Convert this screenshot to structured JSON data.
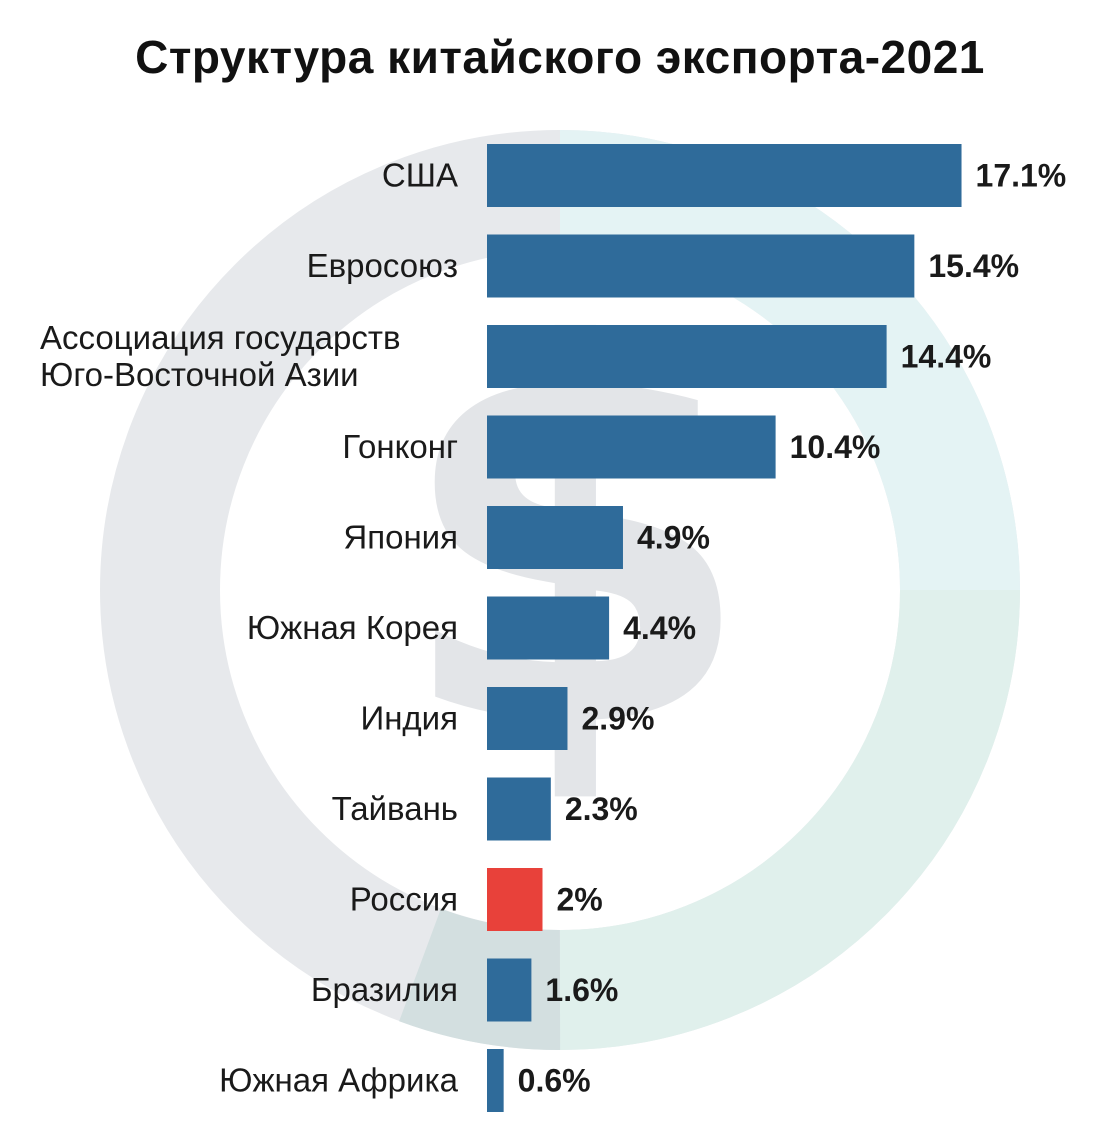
{
  "chart_data": {
    "type": "bar",
    "orientation": "horizontal",
    "title": "Структура китайского экспорта-2021",
    "categories": [
      "США",
      "Евросоюз",
      "Ассоциация государств Юго-Восточной Азии",
      "Гонконг",
      "Япония",
      "Южная Корея",
      "Индия",
      "Тайвань",
      "Россия",
      "Бразилия",
      "Южная Африка"
    ],
    "category_lines": [
      [
        "США"
      ],
      [
        "Евросоюз"
      ],
      [
        "Ассоциация государств",
        "Юго-Восточной Азии"
      ],
      [
        "Гонконг"
      ],
      [
        "Япония"
      ],
      [
        "Южная Корея"
      ],
      [
        "Индия"
      ],
      [
        "Тайвань"
      ],
      [
        "Россия"
      ],
      [
        "Бразилия"
      ],
      [
        "Южная Африка"
      ]
    ],
    "values": [
      17.1,
      15.4,
      14.4,
      10.4,
      4.9,
      4.4,
      2.9,
      2.3,
      2,
      1.6,
      0.6
    ],
    "value_labels": [
      "17.1%",
      "15.4%",
      "14.4%",
      "10.4%",
      "4.9%",
      "4.4%",
      "2.9%",
      "2.3%",
      "2%",
      "1.6%",
      "0.6%"
    ],
    "unit": "%",
    "highlight_index": 8,
    "colors": {
      "bar": "#2f6b9a",
      "highlight": "#e8413a",
      "text": "#1a1a1a",
      "background_ring": "#e6e9ec",
      "background_ring_accent": "#dcefee"
    },
    "xlabel": "",
    "ylabel": "",
    "grid": false,
    "legend": "none"
  }
}
